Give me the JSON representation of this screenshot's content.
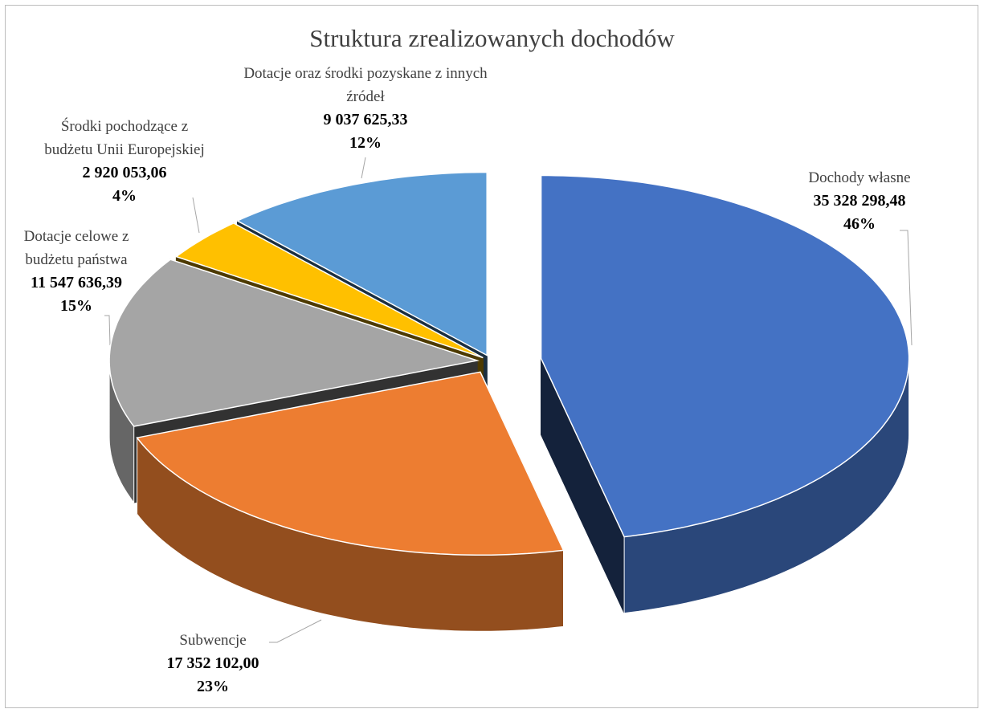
{
  "chart_data": {
    "type": "pie3d",
    "title": "Struktura zrealizowanych dochodów",
    "categories": [
      "Dochody własne",
      "Subwencje",
      "Dotacje celowe z budżetu państwa",
      "Środki pochodzące z budżetu Unii Europejskiej",
      "Dotacje oraz środki pozyskane z innych źródeł"
    ],
    "values": [
      35328298.48,
      17352102.0,
      11547636.39,
      2920053.06,
      9037625.33
    ],
    "value_labels": [
      "35 328 298,48",
      "17 352 102,00",
      "11 547 636,39",
      "2 920 053,06",
      "9 037 625,33"
    ],
    "percentages": [
      46,
      23,
      15,
      4,
      12
    ],
    "percentage_labels": [
      "46%",
      "23%",
      "15%",
      "4%",
      "12%"
    ],
    "colors": [
      "#4472c4",
      "#ed7d31",
      "#a5a5a5",
      "#ffc000",
      "#5b9bd5"
    ]
  }
}
